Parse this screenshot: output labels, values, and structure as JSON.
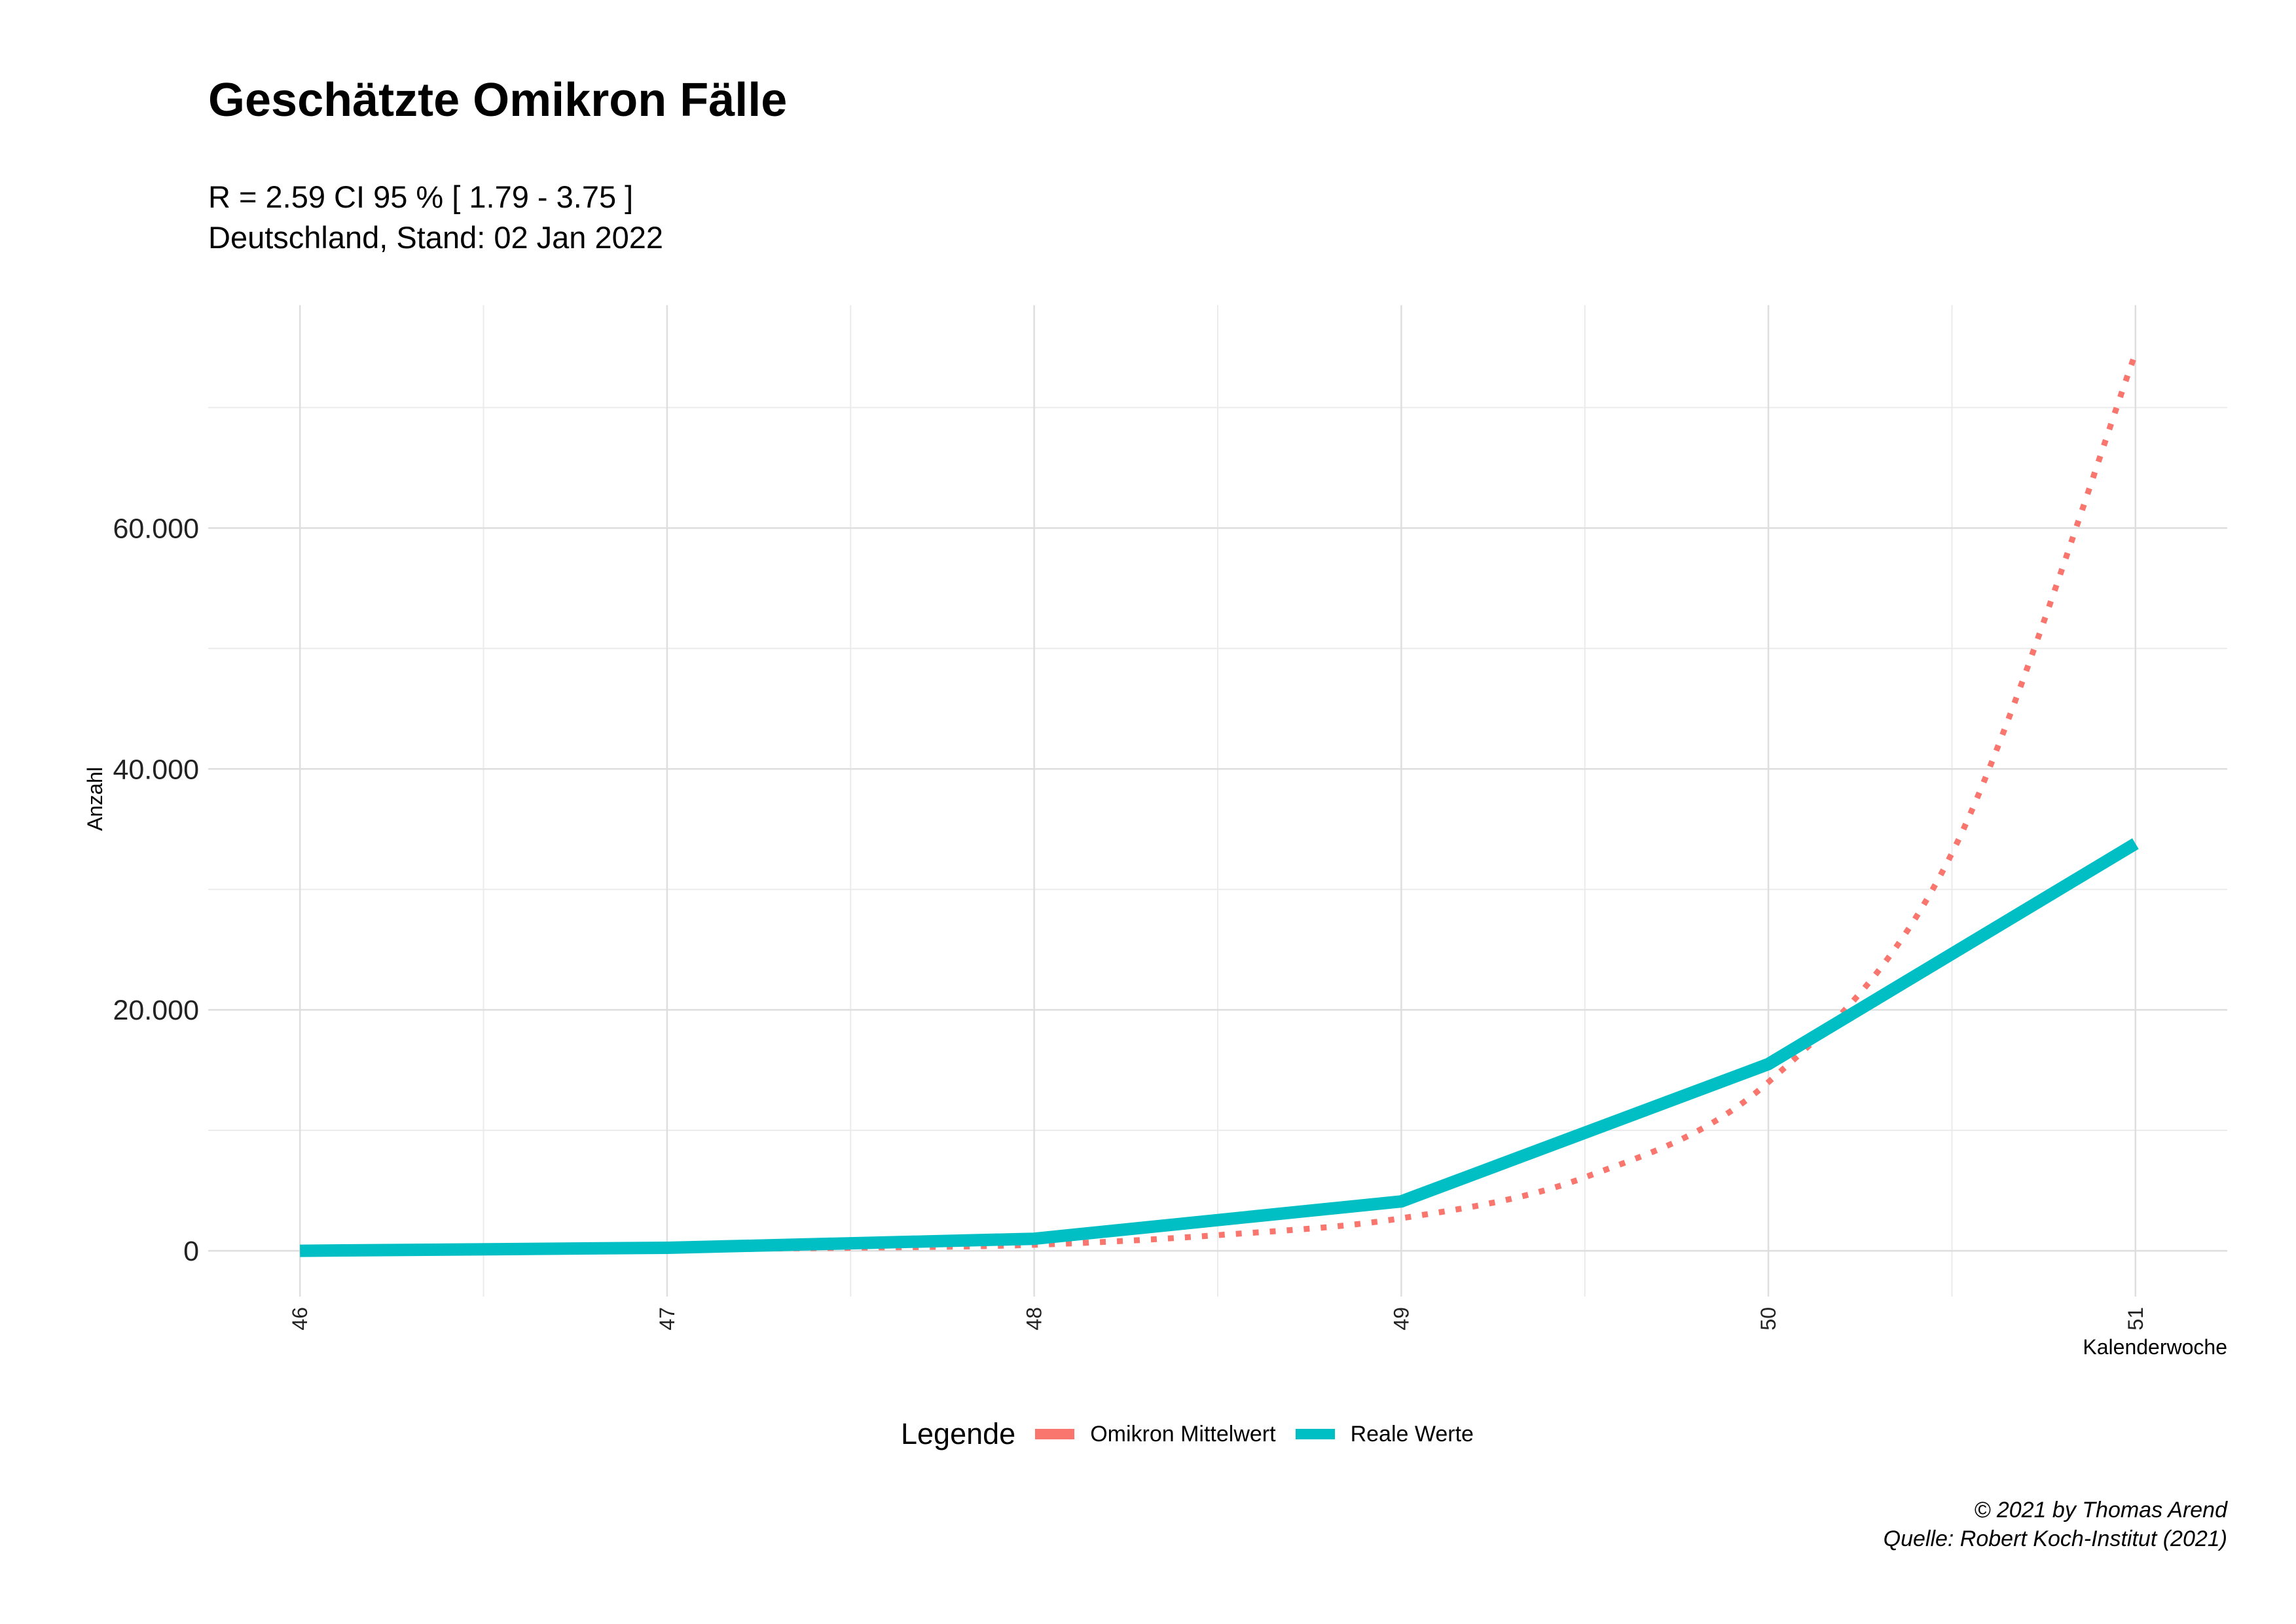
{
  "chart_data": {
    "type": "line",
    "title": "Geschätzte Omikron Fälle",
    "subtitle_lines": [
      "R = 2.59 CI 95 % [ 1.79 - 3.75 ]",
      "Deutschland, Stand: 02 Jan 2022"
    ],
    "xlabel": "Kalenderwoche",
    "ylabel": "Anzahl",
    "x": [
      46,
      47,
      48,
      49,
      50,
      51
    ],
    "x_tick_labels": [
      "46",
      "47",
      "48",
      "49",
      "50",
      "51"
    ],
    "y_ticks": [
      0,
      20000,
      40000,
      60000
    ],
    "y_tick_labels": [
      "0",
      "20.000",
      "40.000",
      "60.000"
    ],
    "xlim": [
      45.75,
      51.25
    ],
    "ylim": [
      -3800,
      78500
    ],
    "grid": true,
    "series": [
      {
        "name": "Omikron Mittelwert",
        "color": "#F8766D",
        "style": "dotted",
        "x": [
          46,
          46.5,
          47,
          47.5,
          48,
          48.5,
          49,
          49.5,
          50,
          50.5,
          51
        ],
        "values": [
          0,
          80,
          150,
          250,
          500,
          1300,
          2700,
          6100,
          14000,
          33000,
          74500
        ]
      },
      {
        "name": "Reale Werte",
        "color": "#00BFC4",
        "style": "solid",
        "x": [
          46,
          47,
          48,
          49,
          50,
          51
        ],
        "values": [
          0,
          250,
          1000,
          4100,
          15500,
          33800
        ]
      }
    ],
    "legend": {
      "title": "Legende",
      "position": "bottom"
    },
    "caption_lines": [
      "© 2021 by Thomas Arend",
      "Quelle: Robert Koch-Institut (2021)"
    ]
  }
}
